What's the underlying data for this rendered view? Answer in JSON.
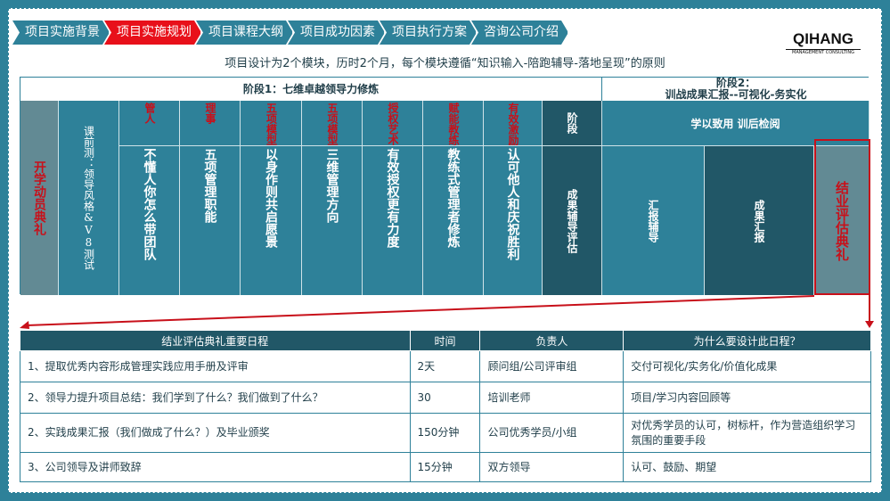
{
  "tabs": [
    "项目实施背景",
    "项目实施规划",
    "项目课程大纲",
    "项目成功因素",
    "项目执行方案",
    "咨询公司介绍"
  ],
  "active_tab": 1,
  "logo": {
    "name": "QIHANG",
    "tagline": "MANAGEMENT CONSULTING"
  },
  "subtitle": "项目设计为2个模块，历时2个月，每个模块遵循“知识输入-陪跑辅导-落地呈现”的原则",
  "phase1": {
    "title": "阶段1：七维卓越领导力修炼",
    "opening": "开学动员典礼",
    "pretest": "课前测：领导风格&V8测试",
    "modules": [
      {
        "head": "管人",
        "body": "不懂人你怎么带团队"
      },
      {
        "head": "理事",
        "body": "五项管理职能"
      },
      {
        "head": "五项模型",
        "body": "以身作则共启愿景"
      },
      {
        "head": "五项模型",
        "body": "三维管理方向"
      },
      {
        "head": "授权艺术",
        "body": "有效授权更有力度"
      },
      {
        "head": "赋能教练",
        "body": "教练式管理者修炼"
      },
      {
        "head": "有效激励",
        "body": "认可他人和庆祝胜利"
      }
    ],
    "stage_head": "阶段",
    "stage_body": "成果辅导评估"
  },
  "phase2": {
    "title_line1": "阶段2：",
    "title_line2": "训战成果汇报--可视化-务实化",
    "sub": "学以致用 训后检阅",
    "items": [
      "汇报辅导",
      "成果汇报"
    ],
    "ceremony": "结业评估典礼"
  },
  "schedule": {
    "headers": [
      "结业评估典礼重要日程",
      "时间",
      "负责人",
      "为什么要设计此日程？"
    ],
    "rows": [
      [
        "1、提取优秀内容形成管理实践应用手册及评审",
        "2天",
        "顾问组/公司评审组",
        "交付可视化/实务化/价值化成果"
      ],
      [
        "2、领导力提升项目总结：我们学到了什么？我们做到了什么？",
        "30",
        "培训老师",
        "项目/学习内容回顾等"
      ],
      [
        "2、实践成果汇报（我们做成了什么？）及毕业颁奖",
        "150分钟",
        "公司优秀学员/小组",
        "对优秀学员的认可，树标杆，作为营造组织学习氛围的重要手段"
      ],
      [
        "3、公司领导及讲师致辞",
        "15分钟",
        "双方领导",
        "认可、鼓励、期望"
      ]
    ]
  },
  "colors": {
    "teal": "#2e8199",
    "dark": "#215767",
    "gray": "#628a94",
    "accent": "#e8101a"
  }
}
